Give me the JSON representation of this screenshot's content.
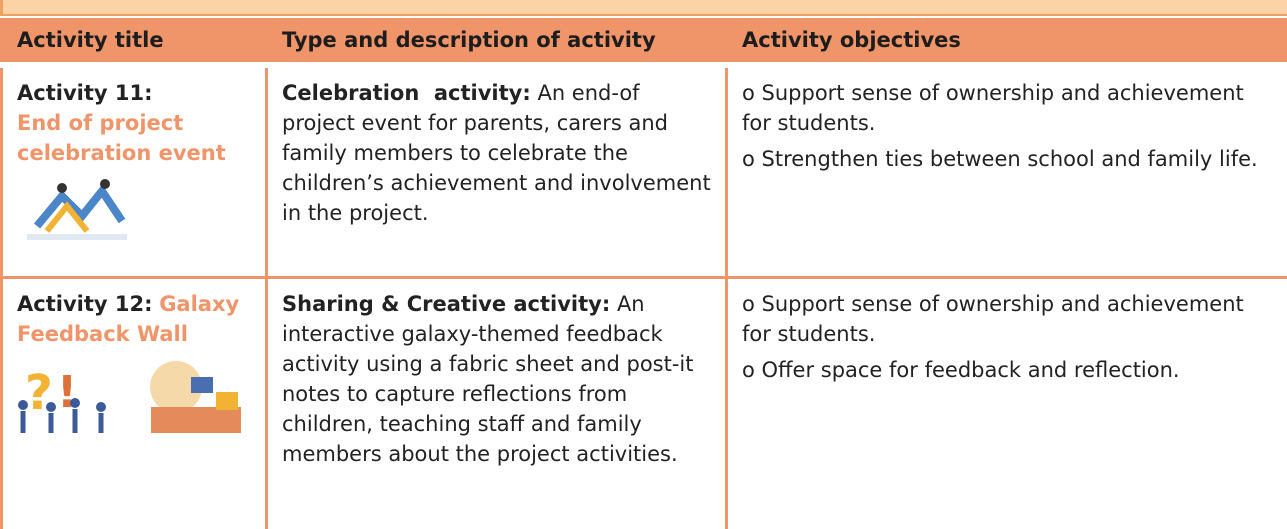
{
  "table": {
    "header": [
      "Activity title",
      "Type and description of activity",
      "Activity objectives"
    ],
    "rows": [
      {
        "title_label": "Activity 11:",
        "title_name": "End of project celebration event",
        "type_label": "Celebration  activity:",
        "type_text": "An end-of project event for parents, carers and family members to celebrate the children’s achievement and involvement in the project.",
        "objectives": [
          "o Support sense of ownership and achievement for students.",
          "o Strengthen ties between school and family life."
        ]
      },
      {
        "title_label": "Activity 12:",
        "title_name": "Galaxy Feedback Wall",
        "type_label": "Sharing & Creative activity:",
        "type_text": "An interactive galaxy-themed feedback activity using a fabric sheet and post-it notes to capture reflections from children, teaching staff and family members about the project activities.",
        "objectives": [
          "o Support sense of ownership and achievement for students.",
          "o Offer space for feedback and reflection."
        ]
      }
    ]
  }
}
